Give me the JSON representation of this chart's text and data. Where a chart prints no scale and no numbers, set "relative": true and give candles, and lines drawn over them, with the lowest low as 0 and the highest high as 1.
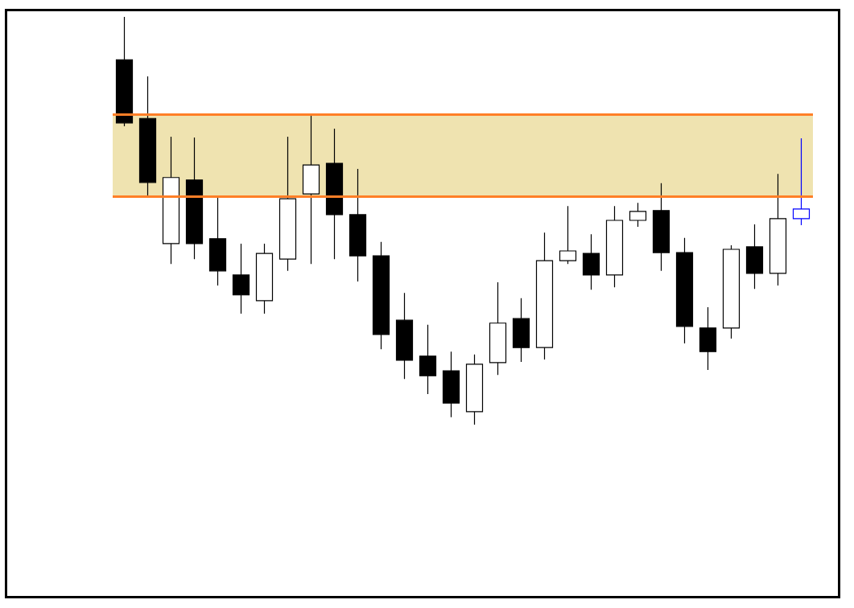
{
  "chart_data": {
    "type": "candlestick",
    "relative": true,
    "categories": [
      null,
      null,
      null,
      null,
      null,
      null,
      null,
      null,
      null,
      null,
      null,
      null,
      null,
      null,
      null,
      null,
      null,
      null,
      null,
      null,
      null,
      null,
      null,
      null,
      null,
      null,
      null,
      null,
      null,
      null
    ],
    "ohlc": [
      [
        0.895,
        1.0,
        0.732,
        0.74
      ],
      [
        0.751,
        0.854,
        0.558,
        0.594
      ],
      [
        0.444,
        0.706,
        0.394,
        0.606
      ],
      [
        0.6,
        0.704,
        0.406,
        0.444
      ],
      [
        0.456,
        0.562,
        0.341,
        0.377
      ],
      [
        0.367,
        0.444,
        0.272,
        0.318
      ],
      [
        0.304,
        0.444,
        0.272,
        0.42
      ],
      [
        0.406,
        0.706,
        0.377,
        0.554
      ],
      [
        0.566,
        0.761,
        0.394,
        0.637
      ],
      [
        0.641,
        0.726,
        0.406,
        0.515
      ],
      [
        0.515,
        0.627,
        0.351,
        0.414
      ],
      [
        0.414,
        0.448,
        0.185,
        0.221
      ],
      [
        0.256,
        0.323,
        0.112,
        0.158
      ],
      [
        0.168,
        0.245,
        0.075,
        0.12
      ],
      [
        0.132,
        0.179,
        0.018,
        0.053
      ],
      [
        0.032,
        0.172,
        0.0,
        0.148
      ],
      [
        0.152,
        0.349,
        0.122,
        0.249
      ],
      [
        0.26,
        0.31,
        0.154,
        0.189
      ],
      [
        0.189,
        0.471,
        0.16,
        0.402
      ],
      [
        0.402,
        0.536,
        0.394,
        0.426
      ],
      [
        0.42,
        0.467,
        0.331,
        0.367
      ],
      [
        0.367,
        0.536,
        0.337,
        0.501
      ],
      [
        0.501,
        0.544,
        0.485,
        0.523
      ],
      [
        0.525,
        0.592,
        0.377,
        0.422
      ],
      [
        0.422,
        0.458,
        0.199,
        0.241
      ],
      [
        0.237,
        0.288,
        0.134,
        0.179
      ],
      [
        0.237,
        0.44,
        0.211,
        0.43
      ],
      [
        0.436,
        0.491,
        0.333,
        0.371
      ],
      [
        0.371,
        0.615,
        0.341,
        0.505
      ],
      [
        0.505,
        0.702,
        0.489,
        0.529
      ]
    ],
    "colors": [
      "#000000",
      "#000000",
      "#000000",
      "#000000",
      "#000000",
      "#000000",
      "#000000",
      "#000000",
      "#000000",
      "#000000",
      "#000000",
      "#000000",
      "#000000",
      "#000000",
      "#000000",
      "#000000",
      "#000000",
      "#000000",
      "#000000",
      "#000000",
      "#000000",
      "#000000",
      "#000000",
      "#000000",
      "#000000",
      "#000000",
      "#000000",
      "#000000",
      "#000000",
      "#0000ff"
    ],
    "bands": [
      {
        "axis": "y",
        "from": 0.562,
        "to": 0.761,
        "color": "#efe3b0"
      }
    ],
    "ref_lines": [
      {
        "axis": "y",
        "value": 0.562,
        "color": "#ff7f27"
      },
      {
        "axis": "y",
        "value": 0.761,
        "color": "#ff7f27"
      }
    ],
    "grid": false
  }
}
